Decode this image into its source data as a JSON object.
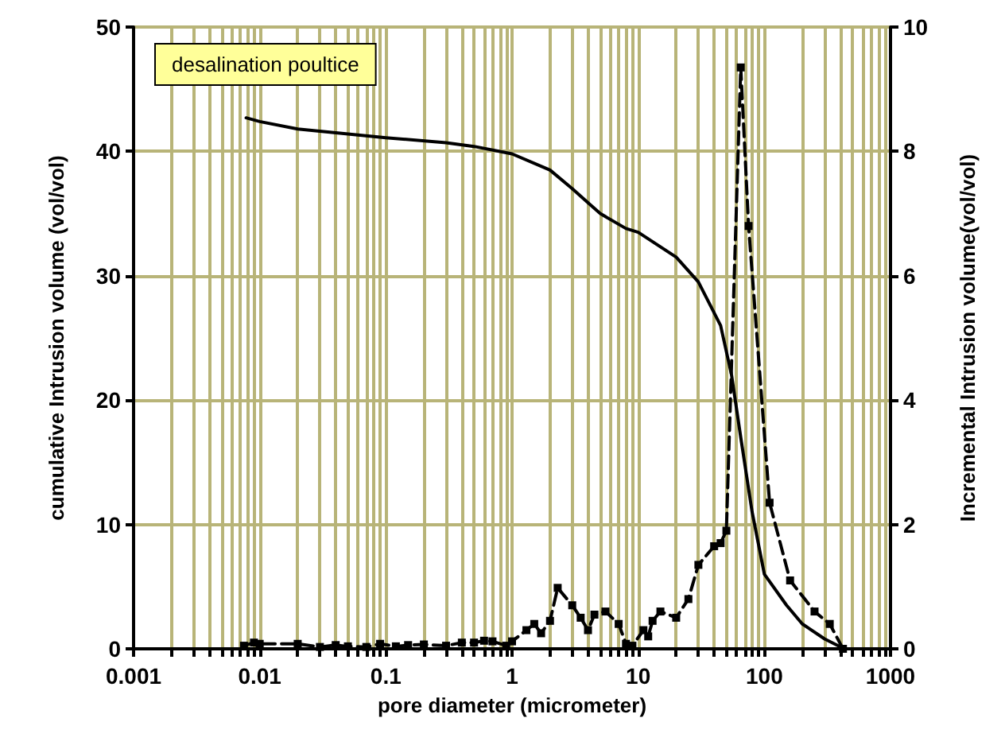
{
  "chart_data": {
    "type": "line",
    "xlabel": "pore diameter (micrometer)",
    "ylabel": "cumulative Intrusion volume (vol/vol)",
    "y2label": "Incremental Intrusion volume(vol/vol)",
    "annotations": [
      "desalination poultice"
    ],
    "log": "x",
    "grid": true,
    "xlim": [
      0.001,
      1000
    ],
    "xticks": [
      0.001,
      {
        "value": 0.002,
        "label": null
      },
      {
        "value": 0.003,
        "label": null
      },
      {
        "value": 0.004,
        "label": null
      },
      {
        "value": 0.005,
        "label": null
      },
      {
        "value": 0.006,
        "label": null
      },
      {
        "value": 0.007,
        "label": null
      },
      {
        "value": 0.008,
        "label": null
      },
      {
        "value": 0.009,
        "label": null
      },
      0.01,
      {
        "value": 0.02,
        "label": null
      },
      {
        "value": 0.03,
        "label": null
      },
      {
        "value": 0.04,
        "label": null
      },
      {
        "value": 0.05,
        "label": null
      },
      {
        "value": 0.06,
        "label": null
      },
      {
        "value": 0.07,
        "label": null
      },
      {
        "value": 0.08,
        "label": null
      },
      {
        "value": 0.09,
        "label": null
      },
      0.1,
      {
        "value": 0.2,
        "label": null
      },
      {
        "value": 0.3,
        "label": null
      },
      {
        "value": 0.4,
        "label": null
      },
      {
        "value": 0.5,
        "label": null
      },
      {
        "value": 0.6,
        "label": null
      },
      {
        "value": 0.7,
        "label": null
      },
      {
        "value": 0.8,
        "label": null
      },
      {
        "value": 0.9,
        "label": null
      },
      1,
      {
        "value": 2,
        "label": null
      },
      {
        "value": 3,
        "label": null
      },
      {
        "value": 4,
        "label": null
      },
      {
        "value": 5,
        "label": null
      },
      {
        "value": 6,
        "label": null
      },
      {
        "value": 7,
        "label": null
      },
      {
        "value": 8,
        "label": null
      },
      {
        "value": 9,
        "label": null
      },
      10,
      {
        "value": 20,
        "label": null
      },
      {
        "value": 30,
        "label": null
      },
      {
        "value": 40,
        "label": null
      },
      {
        "value": 50,
        "label": null
      },
      {
        "value": 60,
        "label": null
      },
      {
        "value": 70,
        "label": null
      },
      {
        "value": 80,
        "label": null
      },
      {
        "value": 90,
        "label": null
      },
      100,
      {
        "value": 200,
        "label": null
      },
      {
        "value": 300,
        "label": null
      },
      {
        "value": 400,
        "label": null
      },
      {
        "value": 500,
        "label": null
      },
      {
        "value": 600,
        "label": null
      },
      {
        "value": 700,
        "label": null
      },
      {
        "value": 800,
        "label": null
      },
      {
        "value": 900,
        "label": null
      },
      1000
    ],
    "ylim": [
      0,
      50
    ],
    "yticks": [
      0,
      10,
      20,
      30,
      40,
      50
    ],
    "y2lim": [
      0,
      10
    ],
    "y2ticks": [
      0,
      2,
      4,
      6,
      8,
      10
    ],
    "series": [
      {
        "color": "#000000",
        "marker": "none",
        "line_style": "solid",
        "x": [
          0.0078,
          0.01,
          0.02,
          0.05,
          0.1,
          0.3,
          0.5,
          1,
          2,
          3,
          5,
          8,
          10,
          20,
          30,
          45,
          55,
          65,
          80,
          100,
          150,
          200,
          300,
          430
        ],
        "values": [
          42.7,
          42.4,
          41.8,
          41.4,
          41.1,
          40.7,
          40.4,
          39.8,
          38.5,
          37,
          35,
          33.8,
          33.5,
          31.5,
          29.5,
          26,
          22,
          17,
          11,
          6,
          3.5,
          2,
          0.8,
          0
        ]
      },
      {
        "color": "#000000",
        "marker": "square",
        "line_style": "dashed",
        "axis": "y2",
        "x": [
          0.0075,
          0.009,
          0.01,
          0.02,
          0.03,
          0.04,
          0.05,
          0.07,
          0.09,
          0.12,
          0.15,
          0.2,
          0.3,
          0.4,
          0.5,
          0.6,
          0.7,
          0.9,
          1.0,
          1.3,
          1.5,
          1.7,
          2.0,
          2.3,
          3,
          3.5,
          4,
          4.5,
          5.5,
          7,
          8,
          9,
          11,
          12,
          13,
          15,
          20,
          25,
          30,
          40,
          45,
          50,
          65,
          75,
          110,
          160,
          250,
          330,
          420
        ],
        "values": [
          0.05,
          0.1,
          0.08,
          0.08,
          0.03,
          0.06,
          0.04,
          0.03,
          0.08,
          0.04,
          0.06,
          0.07,
          0.05,
          0.1,
          0.1,
          0.13,
          0.12,
          0.05,
          0.12,
          0.3,
          0.4,
          0.25,
          0.45,
          0.98,
          0.7,
          0.5,
          0.3,
          0.55,
          0.6,
          0.4,
          0.08,
          0.05,
          0.3,
          0.2,
          0.45,
          0.6,
          0.5,
          0.8,
          1.35,
          1.65,
          1.7,
          1.9,
          9.35,
          6.8,
          2.35,
          1.1,
          0.6,
          0.4,
          0
        ]
      }
    ]
  }
}
